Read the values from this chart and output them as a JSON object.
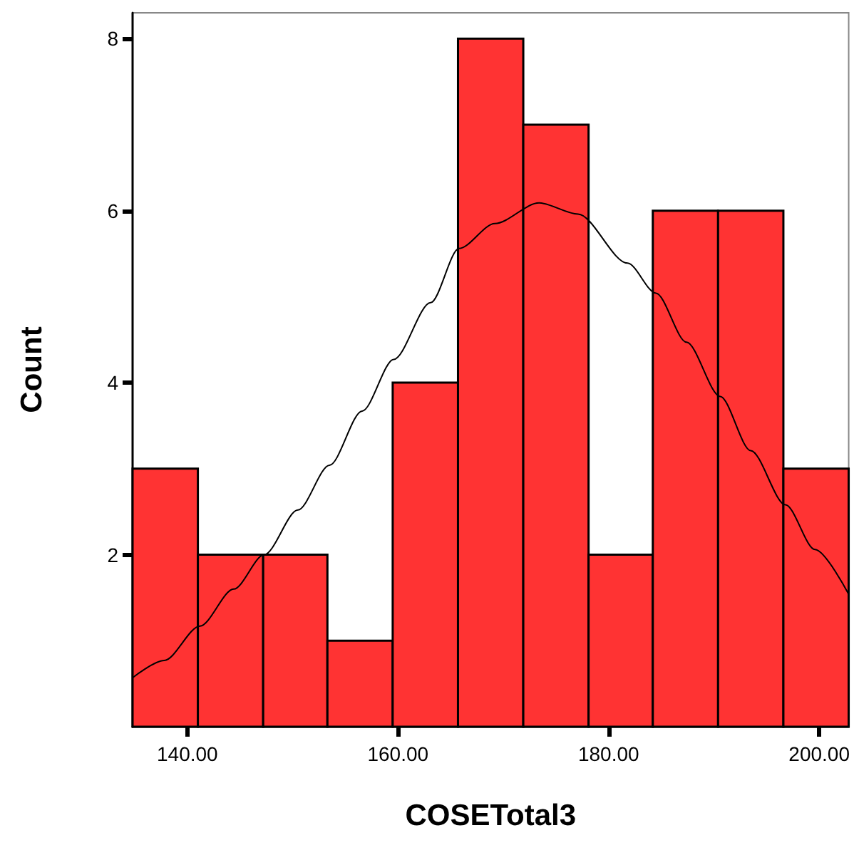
{
  "chart_data": {
    "type": "histogram",
    "xlabel": "COSETotal3",
    "ylabel": "Count",
    "bins": [
      134.8,
      141.0,
      147.2,
      153.3,
      159.5,
      165.7,
      171.9,
      178.1,
      184.2,
      190.4,
      196.6,
      202.8
    ],
    "values": [
      3,
      2,
      2,
      1,
      4,
      8,
      7,
      2,
      6,
      6,
      3
    ],
    "color": "#ff3333",
    "series": [
      {
        "type": "line",
        "color": "#000000",
        "marker": "none",
        "x": [
          134.8,
          137.8,
          141.2,
          144.4,
          147.3,
          150.5,
          153.5,
          156.6,
          159.6,
          163.1,
          165.8,
          169.2,
          173.4,
          177.1,
          181.8,
          184.5,
          187.4,
          190.6,
          193.5,
          196.8,
          199.6,
          202.8
        ],
        "values": [
          0.57,
          0.77,
          1.17,
          1.6,
          2.0,
          2.52,
          3.04,
          3.67,
          4.27,
          4.93,
          5.56,
          5.85,
          6.09,
          5.96,
          5.39,
          5.04,
          4.47,
          3.84,
          3.21,
          2.58,
          2.06,
          1.54
        ]
      }
    ],
    "xlim": [
      134.8,
      202.8
    ],
    "xticks": [
      {
        "value": 140,
        "label": "140.00"
      },
      {
        "value": 160,
        "label": "160.00"
      },
      {
        "value": 180,
        "label": "180.00"
      },
      {
        "value": 200,
        "label": "200.00"
      }
    ],
    "ylim": [
      0,
      8.3
    ],
    "yticks": [
      2,
      4,
      6,
      8
    ],
    "grid": false,
    "legend": false
  }
}
